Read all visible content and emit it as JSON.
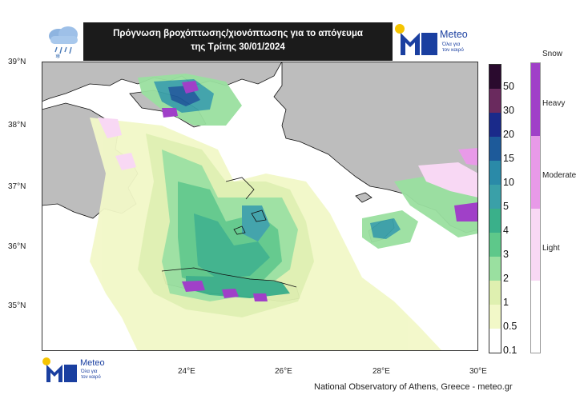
{
  "header": {
    "title_line1": "Πρόγνωση βροχόπτωσης/χιονόπτωσης για το απόγευμα",
    "title_line2": "της Τρίτης 30/01/2024"
  },
  "logo": {
    "brand": "Meteo",
    "tagline_line1": "Όλα για",
    "tagline_line2": "τον καιρό"
  },
  "map": {
    "lat_labels": [
      "39°N",
      "38°N",
      "37°N",
      "36°N",
      "35°N"
    ],
    "lon_labels": [
      "24°E",
      "26°E",
      "28°E",
      "30°E"
    ],
    "lat_range": [
      34.3,
      39.0
    ],
    "lon_range": [
      22.0,
      30.0
    ]
  },
  "precip_scale": {
    "labels": [
      "50",
      "30",
      "20",
      "15",
      "10",
      "5",
      "4",
      "3",
      "2",
      "1",
      "0.5",
      "0.1"
    ],
    "colors": [
      "#2a0a2e",
      "#6a2a5e",
      "#1a2a8a",
      "#1d5a9a",
      "#2a8aa8",
      "#3aa0a8",
      "#3ab08a",
      "#5ec88a",
      "#9ae0a0",
      "#dff0b0",
      "#f2f8c8",
      "#ffffff"
    ]
  },
  "snow_scale": {
    "title": "Snow",
    "labels": [
      "Heavy",
      "Moderate",
      "Light"
    ],
    "colors": [
      "#a040c8",
      "#e89ae8",
      "#f8d8f4"
    ]
  },
  "credit": "National Observatory of Athens, Greece - meteo.gr",
  "colors": {
    "land": "#bdbdbd",
    "sea": "#ffffff",
    "coast": "#111111"
  }
}
